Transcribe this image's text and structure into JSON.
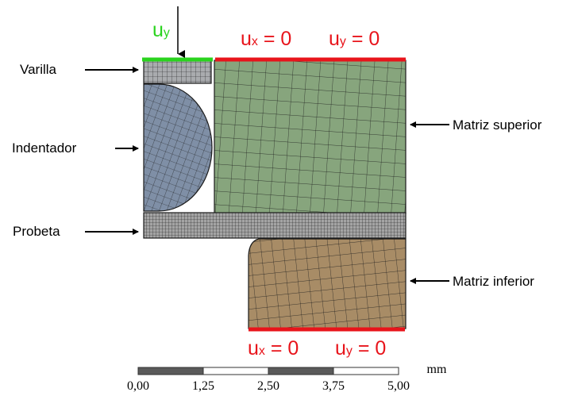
{
  "labels": {
    "varilla": "Varilla",
    "indentador": "Indentador",
    "probeta": "Probeta",
    "matriz_superior": "Matriz superior",
    "matriz_inferior": "Matriz inferior"
  },
  "boundary_conditions": {
    "top_load": {
      "symbol": "u",
      "sub": "y"
    },
    "top_fixed": {
      "ux_symbol": "u",
      "ux_sub": "x",
      "uy_symbol": "u",
      "uy_sub": "y",
      "value": "= 0"
    },
    "bottom_fixed": {
      "ux_symbol": "u",
      "ux_sub": "x",
      "uy_symbol": "u",
      "uy_sub": "y",
      "value": "= 0"
    }
  },
  "scale_bar": {
    "unit": "mm",
    "ticks": [
      "0,00",
      "1,25",
      "2,50",
      "3,75",
      "5,00"
    ]
  },
  "colors": {
    "fixed_bc": "#e8141b",
    "load_bc": "#2ad31e",
    "matriz_superior": "#87a57d",
    "matriz_inferior": "#a88c66",
    "indentador": "#7f8fa6",
    "varilla": "#a9abae",
    "probeta": "#a4a4a4"
  }
}
